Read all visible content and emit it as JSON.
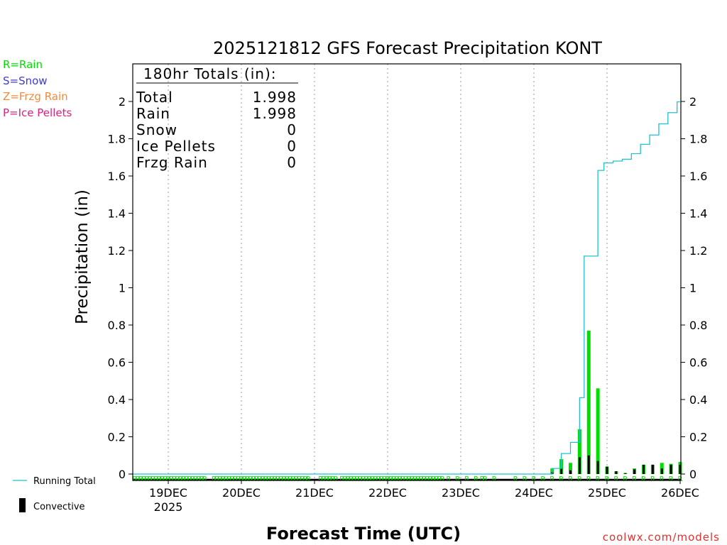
{
  "chart_data": {
    "type": "bar",
    "title": "2025121812 GFS Forecast Precipitation KONT",
    "xlabel": "Forecast Time (UTC)",
    "ylabel": "Precipitation (in)",
    "ylim": [
      0,
      2.2
    ],
    "yticks": [
      0,
      0.2,
      0.4,
      0.6,
      0.8,
      1,
      1.2,
      1.4,
      1.6,
      1.8,
      2
    ],
    "ytick_labels": [
      "0",
      "0.2",
      "0.4",
      "0.6",
      "0.8",
      "1",
      "1.2",
      "1.4",
      "1.6",
      "1.8",
      "2"
    ],
    "xlim_hours": [
      -12,
      168
    ],
    "xticks": [
      {
        "hour": 0,
        "label": "19DEC",
        "sublabel": "2025"
      },
      {
        "hour": 24,
        "label": "20DEC"
      },
      {
        "hour": 48,
        "label": "21DEC"
      },
      {
        "hour": 72,
        "label": "22DEC"
      },
      {
        "hour": 96,
        "label": "23DEC"
      },
      {
        "hour": 120,
        "label": "24DEC"
      },
      {
        "hour": 144,
        "label": "25DEC"
      },
      {
        "hour": 168,
        "label": "26DEC"
      }
    ],
    "precip_type_legend": [
      {
        "text": "R=Rain",
        "color": "#00dd00"
      },
      {
        "text": "S=Snow",
        "color": "#3b3bd9"
      },
      {
        "text": "Z=Frzg Rain",
        "color": "#f08a3c"
      },
      {
        "text": "P=Ice Pellets",
        "color": "#e0207a"
      }
    ],
    "series_legend": [
      {
        "name": "Running Total",
        "color": "#20c0d0",
        "kind": "line"
      },
      {
        "name": "Convective",
        "color": "#000000",
        "kind": "bar"
      }
    ],
    "totals_box": {
      "header": "180hr Totals (in):",
      "rows": [
        {
          "label": "Total",
          "value": "1.998"
        },
        {
          "label": "Rain",
          "value": "1.998"
        },
        {
          "label": "Snow",
          "value": "0"
        },
        {
          "label": "Ice Pellets",
          "value": "0"
        },
        {
          "label": "Frzg Rain",
          "value": "0"
        }
      ]
    },
    "series": [
      {
        "name": "Rain (3-hourly)",
        "color": "#00dd00",
        "points": [
          {
            "hour": 126,
            "value": 0.03
          },
          {
            "hour": 129,
            "value": 0.08
          },
          {
            "hour": 132,
            "value": 0.06
          },
          {
            "hour": 135,
            "value": 0.24
          },
          {
            "hour": 138,
            "value": 0.77
          },
          {
            "hour": 141,
            "value": 0.46
          },
          {
            "hour": 144,
            "value": 0.04
          },
          {
            "hour": 147,
            "value": 0.015
          },
          {
            "hour": 150,
            "value": 0.005
          },
          {
            "hour": 153,
            "value": 0.03
          },
          {
            "hour": 156,
            "value": 0.05
          },
          {
            "hour": 159,
            "value": 0.05
          },
          {
            "hour": 162,
            "value": 0.06
          },
          {
            "hour": 165,
            "value": 0.055
          },
          {
            "hour": 168,
            "value": 0.065
          }
        ]
      },
      {
        "name": "Convective",
        "color": "#000000",
        "points": [
          {
            "hour": 126,
            "value": 0.01
          },
          {
            "hour": 129,
            "value": 0.03
          },
          {
            "hour": 132,
            "value": 0.02
          },
          {
            "hour": 135,
            "value": 0.09
          },
          {
            "hour": 138,
            "value": 0.1
          },
          {
            "hour": 141,
            "value": 0.07
          },
          {
            "hour": 144,
            "value": 0.04
          },
          {
            "hour": 147,
            "value": 0.015
          },
          {
            "hour": 150,
            "value": 0.005
          },
          {
            "hour": 153,
            "value": 0.025
          },
          {
            "hour": 156,
            "value": 0.05
          },
          {
            "hour": 159,
            "value": 0.05
          },
          {
            "hour": 162,
            "value": 0.03
          },
          {
            "hour": 165,
            "value": 0.05
          },
          {
            "hour": 168,
            "value": 0.05
          }
        ]
      },
      {
        "name": "Running Total",
        "color": "#20c0d0",
        "kind": "step",
        "points": [
          {
            "hour": -12,
            "value": 0
          },
          {
            "hour": 123,
            "value": 0
          },
          {
            "hour": 126,
            "value": 0.03
          },
          {
            "hour": 129,
            "value": 0.11
          },
          {
            "hour": 132,
            "value": 0.17
          },
          {
            "hour": 135,
            "value": 0.41
          },
          {
            "hour": 136.5,
            "value": 1.17
          },
          {
            "hour": 138,
            "value": 1.17
          },
          {
            "hour": 141,
            "value": 1.63
          },
          {
            "hour": 143,
            "value": 1.67
          },
          {
            "hour": 146,
            "value": 1.68
          },
          {
            "hour": 149,
            "value": 1.69
          },
          {
            "hour": 152,
            "value": 1.72
          },
          {
            "hour": 155,
            "value": 1.77
          },
          {
            "hour": 158,
            "value": 1.82
          },
          {
            "hour": 161,
            "value": 1.88
          },
          {
            "hour": 164,
            "value": 1.94
          },
          {
            "hour": 167,
            "value": 1.998
          },
          {
            "hour": 168,
            "value": 1.998
          }
        ]
      }
    ],
    "type_markers": {
      "letter": "R",
      "color": "#00dd00",
      "hours": [
        -11,
        -10,
        -9,
        -8,
        -7,
        -6,
        -5,
        -4,
        -3,
        -2,
        -1,
        0,
        1,
        2,
        3,
        4,
        5,
        6,
        7,
        8,
        9,
        10,
        11,
        12,
        15,
        16,
        17,
        18,
        19,
        20,
        21,
        22,
        23,
        24,
        25,
        26,
        27,
        28,
        29,
        30,
        31,
        32,
        33,
        34,
        35,
        36,
        37,
        38,
        39,
        40,
        41,
        42,
        43,
        44,
        45,
        46,
        50,
        51,
        52,
        53,
        54,
        55,
        57,
        58,
        59,
        60,
        61,
        62,
        63,
        64,
        65,
        66,
        67,
        68,
        69,
        70,
        71,
        72,
        73,
        74,
        75,
        76,
        77,
        78,
        79,
        80,
        81,
        82,
        83,
        84,
        85,
        86,
        87,
        88,
        89,
        90,
        92,
        95,
        98,
        101,
        103,
        104,
        107,
        114,
        117,
        120,
        123,
        126,
        129,
        132,
        135,
        138,
        141,
        144,
        147,
        150,
        153,
        156,
        159,
        162,
        165,
        168
      ]
    }
  },
  "footer": {
    "credit": "coolwx.com/models"
  }
}
